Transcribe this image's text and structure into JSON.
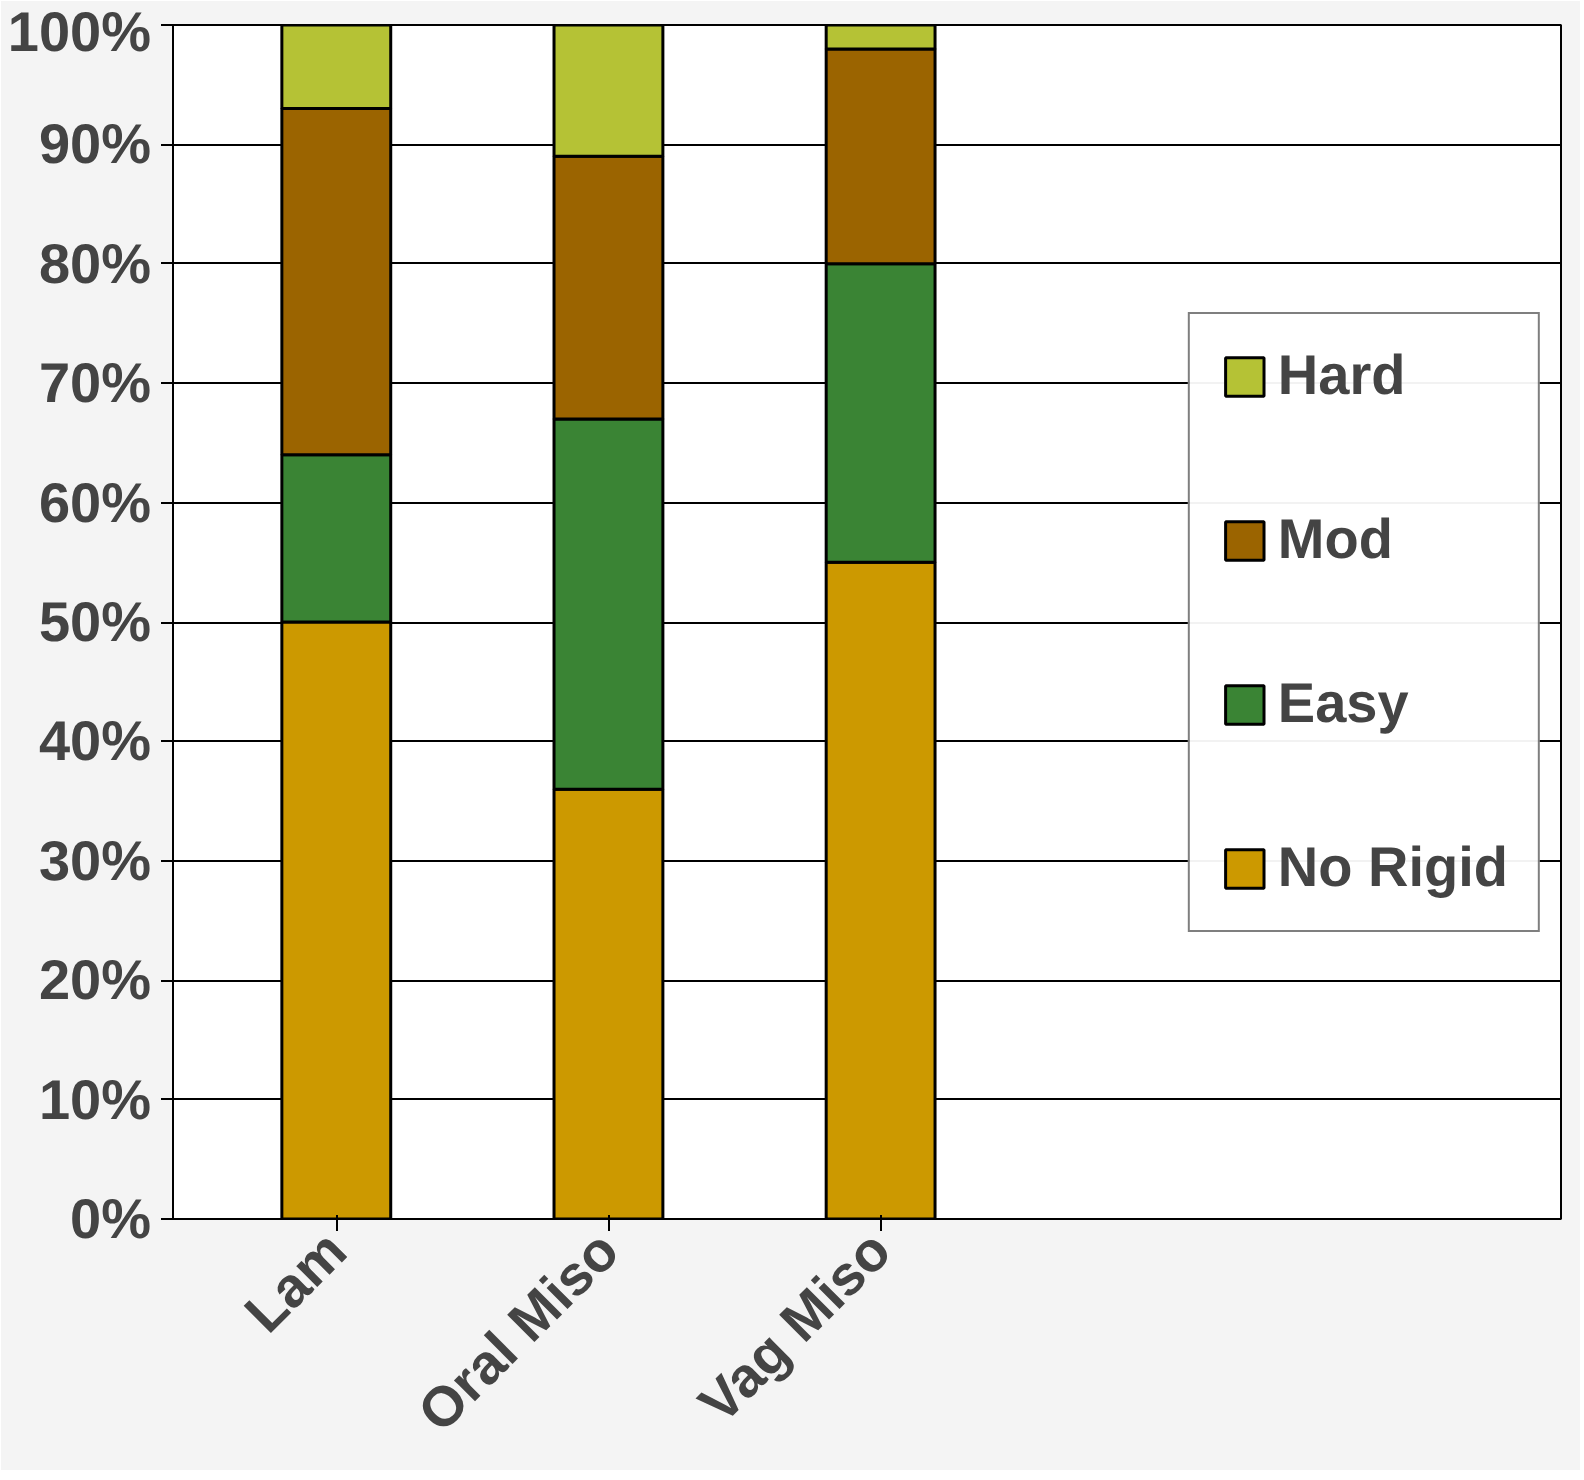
{
  "chart_data": {
    "type": "bar",
    "stacked": true,
    "categories": [
      "Lam",
      "Oral Miso",
      "Vag Miso"
    ],
    "series": [
      {
        "name": "No Rigid",
        "color": "#cc9900",
        "values": [
          50,
          36,
          55
        ]
      },
      {
        "name": "Easy",
        "color": "#3a8434",
        "values": [
          14,
          31,
          25
        ]
      },
      {
        "name": "Mod",
        "color": "#9b6400",
        "values": [
          29,
          22,
          18
        ]
      },
      {
        "name": "Hard",
        "color": "#b5c235",
        "values": [
          7,
          11,
          2
        ]
      }
    ],
    "ylim": [
      0,
      100
    ],
    "yticks": [
      {
        "value": 0,
        "label": "0%"
      },
      {
        "value": 10,
        "label": "10%"
      },
      {
        "value": 20,
        "label": "20%"
      },
      {
        "value": 30,
        "label": "30%"
      },
      {
        "value": 40,
        "label": "40%"
      },
      {
        "value": 50,
        "label": "50%"
      },
      {
        "value": 60,
        "label": "60%"
      },
      {
        "value": 70,
        "label": "70%"
      },
      {
        "value": 80,
        "label": "80%"
      },
      {
        "value": 90,
        "label": "90%"
      },
      {
        "value": 100,
        "label": "100%"
      }
    ],
    "grid": "y",
    "legend": "right"
  }
}
